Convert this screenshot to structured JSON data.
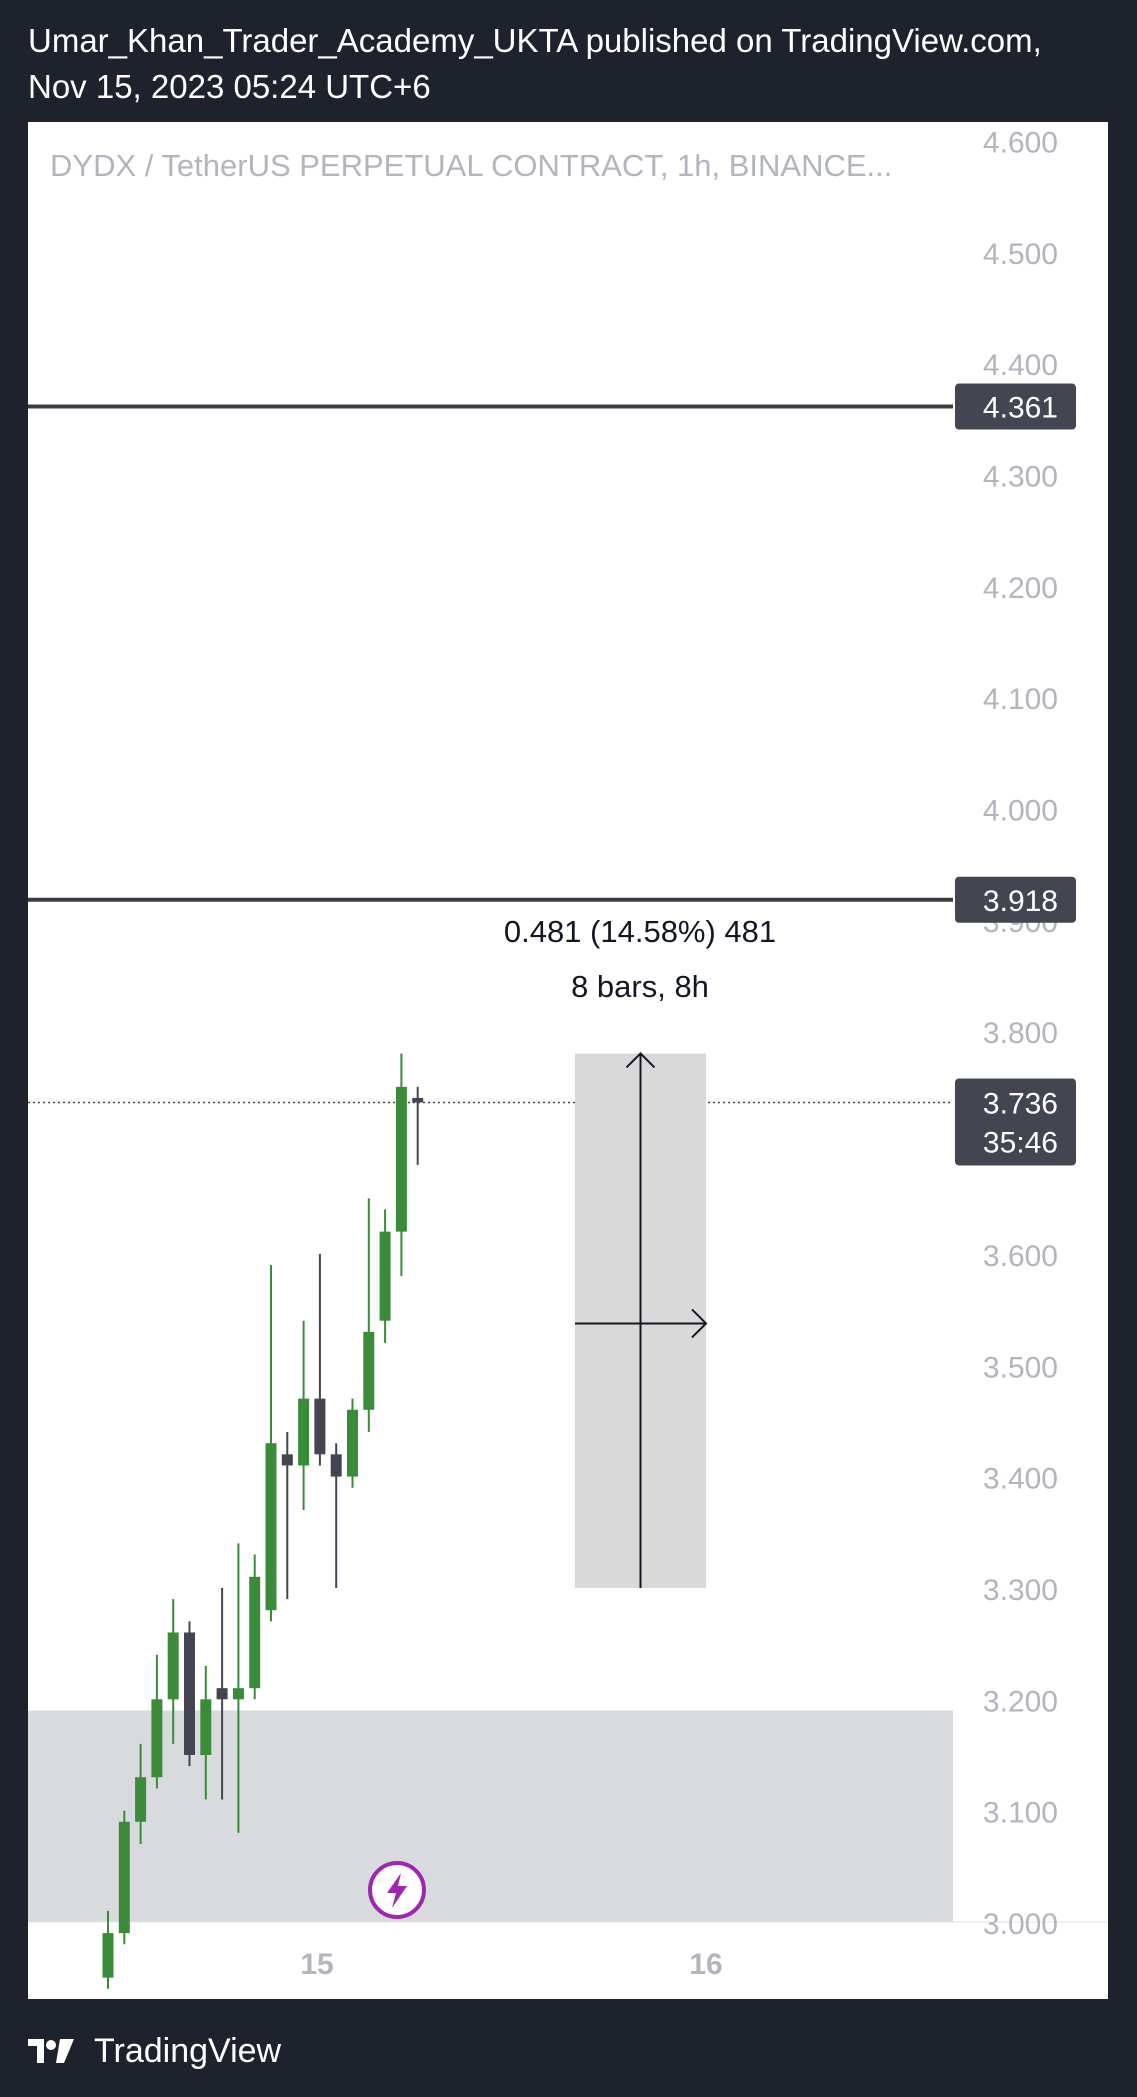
{
  "header": {
    "line1": "Umar_Khan_Trader_Academy_UKTA published on TradingView.com,",
    "line2": "Nov 15, 2023 05:24 UTC+6"
  },
  "footer": {
    "brand": "TradingView",
    "logo_icon": "tradingview-logo-icon"
  },
  "chart_data": {
    "type": "candlestick",
    "title": "DYDX / TetherUS PERPETUAL CONTRACT, 1h, BINANCE...",
    "y_axis": {
      "range": [
        2.99,
        4.61
      ],
      "ticks": [
        "4.600",
        "4.500",
        "4.400",
        "4.300",
        "4.200",
        "4.100",
        "4.000",
        "3.900",
        "3.800",
        "3.700",
        "3.600",
        "3.500",
        "3.400",
        "3.300",
        "3.200",
        "3.100",
        "3.000"
      ]
    },
    "x_axis": {
      "labels": [
        "15",
        "16"
      ]
    },
    "candles": [
      {
        "o": 2.95,
        "h": 3.01,
        "l": 2.94,
        "c": 2.99,
        "color": "green"
      },
      {
        "o": 2.99,
        "h": 3.1,
        "l": 2.98,
        "c": 3.09,
        "color": "green"
      },
      {
        "o": 3.09,
        "h": 3.16,
        "l": 3.07,
        "c": 3.13,
        "color": "green"
      },
      {
        "o": 3.13,
        "h": 3.24,
        "l": 3.12,
        "c": 3.2,
        "color": "green"
      },
      {
        "o": 3.2,
        "h": 3.29,
        "l": 3.16,
        "c": 3.26,
        "color": "green"
      },
      {
        "o": 3.26,
        "h": 3.27,
        "l": 3.14,
        "c": 3.15,
        "color": "dark"
      },
      {
        "o": 3.15,
        "h": 3.23,
        "l": 3.11,
        "c": 3.2,
        "color": "green"
      },
      {
        "o": 3.2,
        "h": 3.3,
        "l": 3.11,
        "c": 3.21,
        "color": "dark"
      },
      {
        "o": 3.2,
        "h": 3.34,
        "l": 3.08,
        "c": 3.21,
        "color": "green"
      },
      {
        "o": 3.21,
        "h": 3.33,
        "l": 3.2,
        "c": 3.31,
        "color": "green"
      },
      {
        "o": 3.28,
        "h": 3.59,
        "l": 3.27,
        "c": 3.43,
        "color": "green"
      },
      {
        "o": 3.42,
        "h": 3.44,
        "l": 3.29,
        "c": 3.41,
        "color": "dark"
      },
      {
        "o": 3.41,
        "h": 3.54,
        "l": 3.37,
        "c": 3.47,
        "color": "green"
      },
      {
        "o": 3.47,
        "h": 3.6,
        "l": 3.41,
        "c": 3.42,
        "color": "dark"
      },
      {
        "o": 3.42,
        "h": 3.43,
        "l": 3.3,
        "c": 3.4,
        "color": "dark"
      },
      {
        "o": 3.4,
        "h": 3.47,
        "l": 3.39,
        "c": 3.46,
        "color": "green"
      },
      {
        "o": 3.46,
        "h": 3.65,
        "l": 3.44,
        "c": 3.53,
        "color": "green"
      },
      {
        "o": 3.54,
        "h": 3.64,
        "l": 3.52,
        "c": 3.62,
        "color": "green"
      },
      {
        "o": 3.62,
        "h": 3.78,
        "l": 3.58,
        "c": 3.75,
        "color": "green"
      },
      {
        "o": 3.74,
        "h": 3.75,
        "l": 3.68,
        "c": 3.736,
        "color": "dark"
      }
    ],
    "horizontal_lines": [
      {
        "value": 4.361,
        "label": "4.361"
      },
      {
        "value": 3.918,
        "label": "3.918"
      }
    ],
    "current_price": {
      "value": 3.736,
      "label": "3.736",
      "countdown": "35:46"
    },
    "zone": {
      "from": 2.99,
      "to": 3.19
    },
    "measure": {
      "text1": "0.481 (14.58%) 481",
      "text2": "8 bars, 8h",
      "price_from": 3.3,
      "price_to": 3.78
    },
    "event_icon": "lightning-icon",
    "colors": {
      "up": "#3b8b3b",
      "down": "#434651",
      "axis_text": "#b2b5be",
      "line": "#3a3d46",
      "zone": "#d9dadd",
      "measure_box": "#d9d9d9",
      "event": "#9c27b0"
    }
  }
}
